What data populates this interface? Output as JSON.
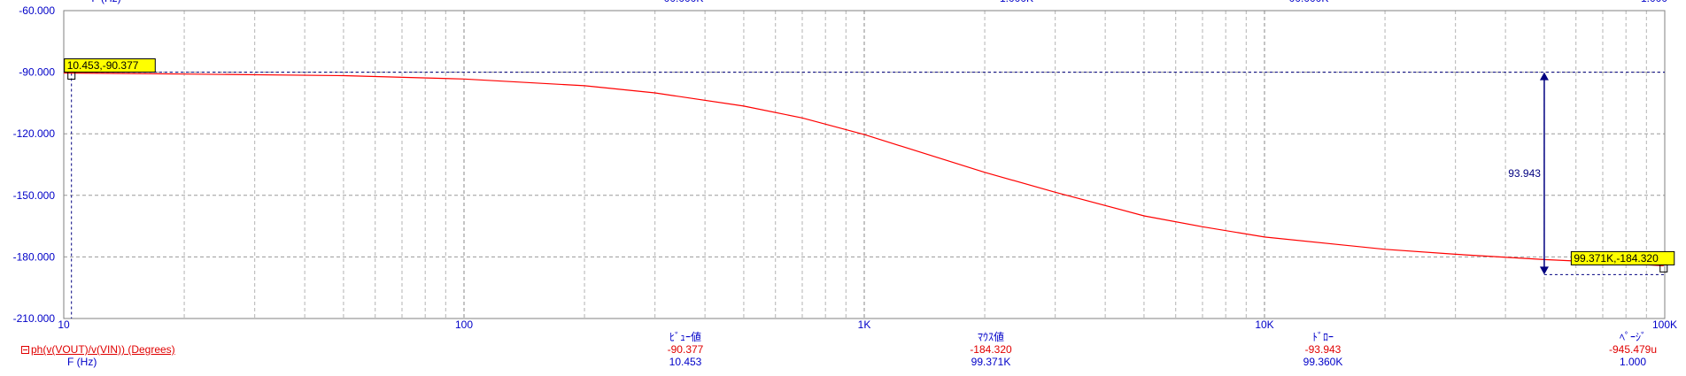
{
  "chart_data": {
    "type": "line",
    "x_scale": "log",
    "xlim": [
      10,
      100000
    ],
    "ylim": [
      -210,
      -60
    ],
    "x_major_ticks": [
      10,
      100,
      1000,
      10000,
      100000
    ],
    "x_tick_labels": [
      "10",
      "100",
      "1K",
      "10K",
      "100K"
    ],
    "y_ticks": [
      -60,
      -90,
      -120,
      -150,
      -180,
      -210
    ],
    "y_tick_labels": [
      "-60.000",
      "-90.000",
      "-120.000",
      "-150.000",
      "-180.000",
      "-210.000"
    ],
    "grid": true,
    "series": [
      {
        "name": "ph(v(VOUT)/v(VIN)) (Degrees)",
        "color": "#ff0000",
        "x": [
          10,
          20,
          50,
          100,
          200,
          300,
          500,
          700,
          1000,
          2000,
          3000,
          5000,
          7000,
          10000,
          20000,
          30000,
          50000,
          70000,
          99371
        ],
        "y": [
          -90.4,
          -90.9,
          -91.7,
          -93.3,
          -96.6,
          -100.1,
          -106.5,
          -112.3,
          -120.4,
          -138.8,
          -148.5,
          -160.0,
          -165.3,
          -170.3,
          -176.3,
          -178.7,
          -181.3,
          -182.6,
          -184.32
        ]
      }
    ],
    "cursors": [
      {
        "label": "10.453,-90.377",
        "x": 10.453,
        "y": -90.377
      },
      {
        "label": "99.371K,-184.320",
        "x": 99371,
        "y": -184.32
      }
    ],
    "delta_annotation": {
      "label": "93.943",
      "x": 50000,
      "y_from": -90.0,
      "y_to": -184.32
    },
    "top_partial_labels": [
      "F (Hz)",
      "00.000K",
      "1.000K",
      "00.000K",
      "1.000"
    ]
  },
  "summary": {
    "trace_row": "ph(v(VOUT)/v(VIN)) (Degrees)",
    "freq_row": "F (Hz)",
    "columns": [
      {
        "header": "ﾋﾞｭｰ値",
        "value": "-90.377",
        "freq": "10.453"
      },
      {
        "header": "ﾏｳｽ値",
        "value": "-184.320",
        "freq": "99.371K"
      },
      {
        "header": "ﾄﾞﾛｰ",
        "value": "-93.943",
        "freq": "99.360K"
      },
      {
        "header": "ﾍﾟｰｼﾞ",
        "value": "-945.479u",
        "freq": "1.000"
      }
    ]
  }
}
